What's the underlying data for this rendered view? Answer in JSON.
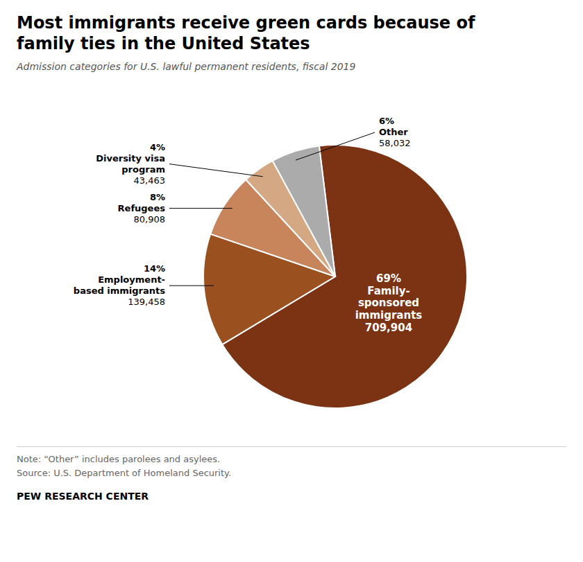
{
  "chart_data": {
    "type": "pie",
    "title": "Most immigrants receive green cards because of\nfamily ties in the United States",
    "subtitle": "Admission categories for U.S. lawful permanent residents, fiscal 2019",
    "categories": [
      "Family-\nsponsored\nimmigrants",
      "Employment-\nbased immigrants",
      "Refugees",
      "Diversity visa\nprogram",
      "Other"
    ],
    "values": [
      69,
      14,
      8,
      4,
      6
    ],
    "value_labels": [
      "69%",
      "14%",
      "8%",
      "4%",
      "6%"
    ],
    "counts": [
      709904,
      139458,
      80908,
      43463,
      58032
    ],
    "colors": [
      "#7B3314",
      "#9B5020",
      "#C8845A",
      "#D4A882",
      "#ABABAB"
    ],
    "data_labels": true,
    "annotations": [
      "Note: “Other” includes parolees and asylees.",
      "Source: U.S. Department of Homeland Security.",
      "PEW RESEARCH CENTER"
    ]
  }
}
